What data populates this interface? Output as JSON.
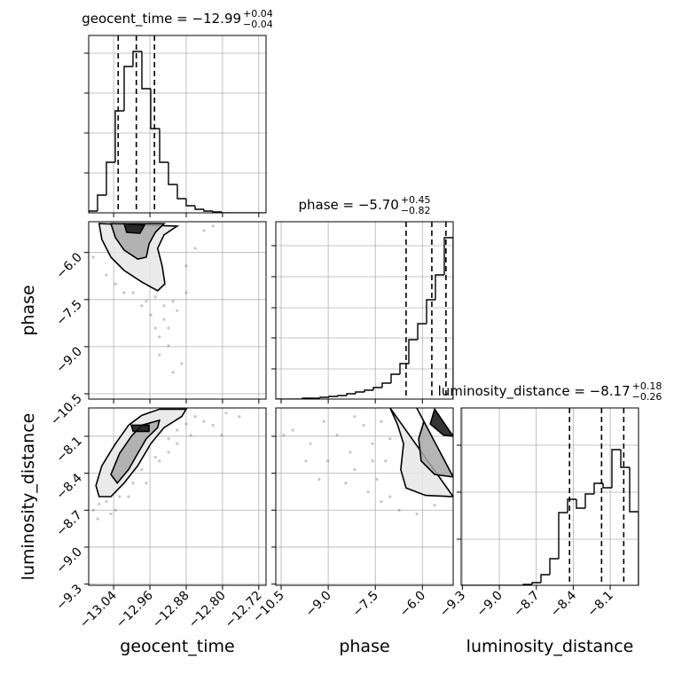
{
  "chart_data": [
    {
      "type": "histogram",
      "title": "geocent_time = −12.99",
      "title_upper": "+0.04",
      "title_lower": "−0.04",
      "bins": [
        -13.095,
        -13.0755,
        -13.0559,
        -13.0364,
        -13.0168,
        -12.9973,
        -12.9777,
        -12.9582,
        -12.9386,
        -12.9191,
        -12.8995,
        -12.88,
        -12.8604,
        -12.8409,
        -12.8213,
        -12.8018,
        -12.7822,
        -12.7627,
        -12.7431,
        -12.7236,
        -12.704
      ],
      "values": [
        2,
        20,
        57,
        115,
        165,
        182,
        140,
        95,
        57,
        32,
        16,
        8,
        4,
        2,
        1,
        0,
        0,
        0,
        0,
        0
      ],
      "quantiles": [
        -13.03,
        -12.99,
        -12.95
      ],
      "color": "#000000",
      "xlim": [
        -13.095,
        -12.704
      ],
      "xticks": [
        {
          "value": -13.04,
          "label": "−13.04"
        },
        {
          "value": -12.96,
          "label": "−12.96"
        },
        {
          "value": -12.88,
          "label": "−12.88"
        },
        {
          "value": -12.8,
          "label": "−12.80"
        },
        {
          "value": -12.72,
          "label": "−12.72"
        }
      ],
      "ylim": [
        0,
        200
      ],
      "yticks": [
        45,
        90,
        135,
        180
      ],
      "grid": true
    },
    {
      "type": "histogram",
      "title": "phase = −5.70",
      "title_upper": "+0.45",
      "title_lower": "−0.82",
      "bins": [
        -10.67,
        -10.3875,
        -10.105,
        -9.8225,
        -9.54,
        -9.2575,
        -8.975,
        -8.6925,
        -8.41,
        -8.1275,
        -7.845,
        -7.5625,
        -7.28,
        -6.9975,
        -6.715,
        -6.4325,
        -6.15,
        -5.8675,
        -5.585,
        -5.3025,
        -5.02
      ],
      "values": [
        0,
        0,
        0,
        1,
        1,
        2,
        3,
        4,
        6,
        8,
        10,
        13,
        18,
        28,
        40,
        67,
        85,
        112,
        140,
        182
      ],
      "quantiles": [
        -6.52,
        -5.7,
        -5.25
      ],
      "color": "#000000",
      "xlim": [
        -10.67,
        -5.02
      ],
      "xticks": [
        {
          "value": -10.5,
          "label": "−10.5"
        },
        {
          "value": -9.0,
          "label": "−9.0"
        },
        {
          "value": -7.5,
          "label": "−7.5"
        },
        {
          "value": -6.0,
          "label": "−6.0"
        }
      ],
      "ylim": [
        0,
        200
      ],
      "yticks": [
        34,
        69,
        103,
        138,
        173
      ],
      "grid": true
    },
    {
      "type": "histogram",
      "title": "luminosity_distance = −8.17",
      "title_upper": "+0.18",
      "title_lower": "−0.26",
      "xlabel": "luminosity_distance",
      "bins": [
        -9.31,
        -9.238,
        -9.166,
        -9.094,
        -9.022,
        -8.95,
        -8.878,
        -8.806,
        -8.734,
        -8.662,
        -8.59,
        -8.518,
        -8.446,
        -8.374,
        -8.302,
        -8.23,
        -8.158,
        -8.086,
        -8.014,
        -7.942,
        -7.87
      ],
      "values": [
        0,
        0,
        0,
        0,
        0,
        0,
        0,
        1,
        3,
        12,
        30,
        82,
        97,
        87,
        103,
        115,
        110,
        153,
        133,
        83
      ],
      "quantiles": [
        -8.43,
        -8.17,
        -7.99
      ],
      "color": "#000000",
      "xlim": [
        -9.31,
        -7.87
      ],
      "xticks": [
        {
          "value": -9.3,
          "label": "−9.3"
        },
        {
          "value": -9.0,
          "label": "−9.0"
        },
        {
          "value": -8.7,
          "label": "−8.7"
        },
        {
          "value": -8.4,
          "label": "−8.4"
        },
        {
          "value": -8.1,
          "label": "−8.1"
        }
      ],
      "ylim": [
        0,
        200
      ],
      "yticks": [
        52,
        105,
        158
      ],
      "grid": true
    },
    {
      "type": "scatter",
      "ylabel": "phase",
      "color": "#000000",
      "xlim": [
        -13.095,
        -12.704
      ],
      "xticks": [
        {
          "value": -13.04,
          "label": "−13.04"
        },
        {
          "value": -12.96,
          "label": "−12.96"
        },
        {
          "value": -12.88,
          "label": "−12.88"
        },
        {
          "value": -12.8,
          "label": "−12.80"
        },
        {
          "value": -12.72,
          "label": "−12.72"
        }
      ],
      "ylim": [
        -10.67,
        -5.02
      ],
      "yticks": [
        {
          "value": -6.0,
          "label": "−6.0"
        },
        {
          "value": -7.5,
          "label": "−7.5"
        },
        {
          "value": -9.0,
          "label": "−9.0"
        },
        {
          "value": -10.5,
          "label": "−10.5"
        }
      ],
      "grid": true,
      "x": [
        -12.997,
        -12.978,
        -12.958,
        -12.948,
        -12.939,
        -12.929,
        -12.919,
        -12.909,
        -12.9,
        -12.968,
        -13.017,
        -13.036,
        -12.88,
        -12.86,
        -12.841,
        -12.89,
        -12.939,
        -12.909,
        -13.056,
        -13.085,
        -12.821,
        -12.929,
        -12.948,
        -12.88,
        -12.919
      ],
      "y": [
        -7.28,
        -7.7,
        -7.99,
        -8.41,
        -8.69,
        -8.13,
        -8.97,
        -7.56,
        -7.85,
        -7.56,
        -7.28,
        -7.0,
        -6.43,
        -5.87,
        -5.3,
        -9.54,
        -9.26,
        -9.82,
        -6.72,
        -6.15,
        -5.16,
        -7.7,
        -7.42,
        -7.28,
        -8.41
      ],
      "contours": [
        {
          "x": [
            -13.072,
            -13.066,
            -13.046,
            -13.017,
            -12.978,
            -12.943,
            -12.927,
            -12.933,
            -12.943,
            -12.929,
            -12.9
          ],
          "y": [
            -5.08,
            -5.58,
            -6.15,
            -6.57,
            -6.94,
            -7.22,
            -7.0,
            -6.43,
            -5.87,
            -5.44,
            -5.16
          ]
        },
        {
          "x": [
            -13.046,
            -13.036,
            -13.017,
            -12.987,
            -12.968,
            -12.962,
            -12.948,
            -12.929
          ],
          "y": [
            -5.08,
            -5.53,
            -5.92,
            -6.21,
            -6.15,
            -5.73,
            -5.36,
            -5.08
          ]
        },
        {
          "x": [
            -13.017,
            -13.011,
            -12.982,
            -12.972
          ],
          "y": [
            -5.08,
            -5.36,
            -5.39,
            -5.13
          ]
        }
      ]
    },
    {
      "type": "scatter",
      "xlabel": "geocent_time",
      "ylabel": "luminosity_distance",
      "color": "#000000",
      "xlim": [
        -13.095,
        -12.704
      ],
      "xticks": [
        {
          "value": -13.04,
          "label": "−13.04"
        },
        {
          "value": -12.96,
          "label": "−12.96"
        },
        {
          "value": -12.88,
          "label": "−12.88"
        },
        {
          "value": -12.8,
          "label": "−12.80"
        },
        {
          "value": -12.72,
          "label": "−12.72"
        }
      ],
      "ylim": [
        -9.31,
        -7.87
      ],
      "yticks": [
        {
          "value": -8.1,
          "label": "−8.1"
        },
        {
          "value": -8.4,
          "label": "−8.4"
        },
        {
          "value": -8.7,
          "label": "−8.7"
        },
        {
          "value": -9.0,
          "label": "−9.0"
        },
        {
          "value": -9.3,
          "label": "−9.3"
        }
      ],
      "grid": true,
      "x": [
        -13.085,
        -13.072,
        -13.056,
        -13.027,
        -12.997,
        -12.978,
        -12.948,
        -12.919,
        -12.9,
        -12.86,
        -12.841,
        -12.821,
        -12.802,
        -12.939,
        -12.968,
        -13.007,
        -13.036,
        -12.9,
        -12.87,
        -12.792,
        -12.763,
        -13.046,
        -12.919,
        -13.075,
        -12.88
      ],
      "y": [
        -8.7,
        -8.65,
        -8.63,
        -8.59,
        -8.48,
        -8.37,
        -8.27,
        -8.12,
        -8.05,
        -7.94,
        -7.98,
        -8.01,
        -8.09,
        -8.3,
        -8.48,
        -8.59,
        -8.7,
        -8.16,
        -8.09,
        -7.91,
        -7.94,
        -8.73,
        -8.23,
        -8.77,
        -8.0
      ],
      "contours": [
        {
          "x": [
            -13.079,
            -13.066,
            -13.036,
            -13.007,
            -12.978,
            -12.939,
            -12.88,
            -12.89,
            -12.929,
            -12.958,
            -12.987,
            -13.017,
            -13.046,
            -13.072
          ],
          "y": [
            -8.5,
            -8.34,
            -8.16,
            -8.01,
            -7.93,
            -7.88,
            -7.88,
            -7.94,
            -8.03,
            -8.16,
            -8.34,
            -8.48,
            -8.59,
            -8.59
          ]
        },
        {
          "x": [
            -13.046,
            -13.027,
            -13.001,
            -12.978,
            -12.939,
            -12.943,
            -12.968,
            -12.987,
            -13.007,
            -13.032
          ],
          "y": [
            -8.41,
            -8.24,
            -8.1,
            -8.01,
            -7.97,
            -8.03,
            -8.12,
            -8.24,
            -8.37,
            -8.48
          ]
        },
        {
          "x": [
            -13.001,
            -12.997,
            -12.962,
            -12.962
          ],
          "y": [
            -8.01,
            -8.06,
            -8.06,
            -8.01
          ]
        }
      ]
    },
    {
      "type": "scatter",
      "xlabel": "phase",
      "color": "#000000",
      "xlim": [
        -10.67,
        -5.02
      ],
      "xticks": [
        {
          "value": -10.5,
          "label": "−10.5"
        },
        {
          "value": -9.0,
          "label": "−9.0"
        },
        {
          "value": -7.5,
          "label": "−7.5"
        },
        {
          "value": -6.0,
          "label": "−6.0"
        }
      ],
      "ylim": [
        -9.31,
        -7.87
      ],
      "yticks": [
        {
          "value": -8.1,
          "label": "−8.1"
        },
        {
          "value": -8.4,
          "label": "−8.4"
        },
        {
          "value": -8.7,
          "label": "−8.7"
        },
        {
          "value": -9.0,
          "label": "−9.0"
        },
        {
          "value": -9.3,
          "label": "−9.3"
        }
      ],
      "grid": true,
      "x": [
        -10.13,
        -9.57,
        -9.01,
        -8.72,
        -8.3,
        -8.16,
        -7.87,
        -7.59,
        -7.45,
        -7.17,
        -7.03,
        -7.31,
        -7.73,
        -8.44,
        -9.29,
        -9.71,
        -10.42,
        -8.16,
        -7.31,
        -6.74,
        -6.18,
        -5.61,
        -9.14,
        -7.59,
        -7.03
      ],
      "y": [
        -8.05,
        -8.16,
        -8.3,
        -8.09,
        -8.23,
        -8.37,
        -8.01,
        -8.16,
        -8.45,
        -8.3,
        -8.59,
        -8.63,
        -8.55,
        -8.48,
        -8.45,
        -8.3,
        -8.09,
        -7.94,
        -7.98,
        -8.7,
        -8.73,
        -8.66,
        -7.98,
        -8.3,
        -8.12
      ],
      "contours": [
        {
          "x": [
            -7.03,
            -6.8,
            -6.6,
            -6.69,
            -6.52,
            -5.9,
            -5.02
          ],
          "y": [
            -7.87,
            -8.0,
            -8.16,
            -8.37,
            -8.52,
            -8.58,
            -8.59
          ]
        },
        {
          "x": [
            -6.18,
            -5.95,
            -6.12,
            -6.04,
            -5.61,
            -5.02
          ],
          "y": [
            -7.87,
            -7.98,
            -8.12,
            -8.3,
            -8.41,
            -8.43
          ]
        },
        {
          "x": [
            -5.61,
            -5.75,
            -5.33,
            -5.02
          ],
          "y": [
            -7.88,
            -8.0,
            -8.09,
            -8.1
          ]
        }
      ]
    }
  ]
}
